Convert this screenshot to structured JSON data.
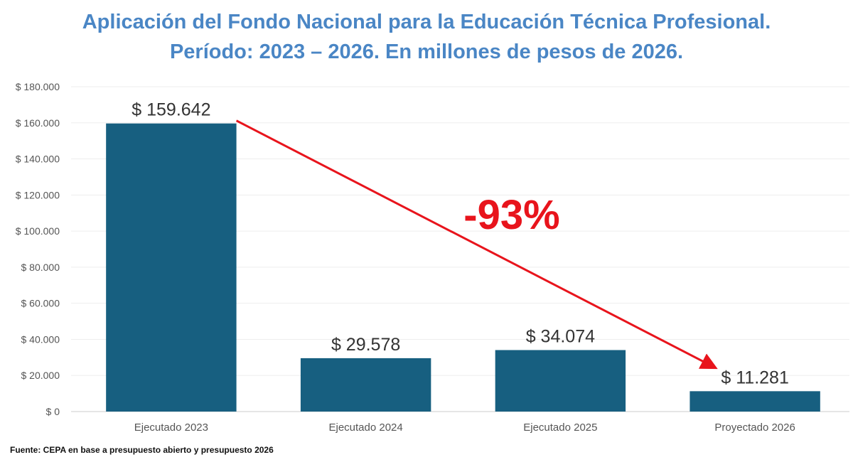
{
  "title_line1": "Aplicación del Fondo Nacional para la Educación Técnica Profesional.",
  "title_line2": "Período: 2023 – 2026. En millones de pesos de 2026.",
  "source": "Fuente: CEPA en base a presupuesto abierto y presupuesto 2026",
  "colors": {
    "title": "#4a86c5",
    "bar": "#175f80",
    "annotation": "#e8141c",
    "grid": "#eeeeee",
    "axis_text": "#555555"
  },
  "chart_data": {
    "type": "bar",
    "title": "Aplicación del Fondo Nacional para la Educación Técnica Profesional. Período: 2023 – 2026. En millones de pesos de 2026.",
    "categories": [
      "Ejecutado 2023",
      "Ejecutado 2024",
      "Ejecutado 2025",
      "Proyectado 2026"
    ],
    "values": [
      159642,
      29578,
      34074,
      11281
    ],
    "data_labels": [
      "$ 159.642",
      "$ 29.578",
      "$ 34.074",
      "$ 11.281"
    ],
    "ylim": [
      0,
      180000
    ],
    "yticks": [
      0,
      20000,
      40000,
      60000,
      80000,
      100000,
      120000,
      140000,
      160000,
      180000
    ],
    "ytick_labels": [
      "$ 0",
      "$ 20.000",
      "$ 40.000",
      "$ 60.000",
      "$ 80.000",
      "$ 100.000",
      "$ 120.000",
      "$ 140.000",
      "$ 160.000",
      "$ 180.000"
    ],
    "grid": true,
    "legend": "none",
    "annotation": {
      "text": "-93%",
      "from_category": "Ejecutado 2023",
      "to_category": "Proyectado 2026"
    }
  }
}
